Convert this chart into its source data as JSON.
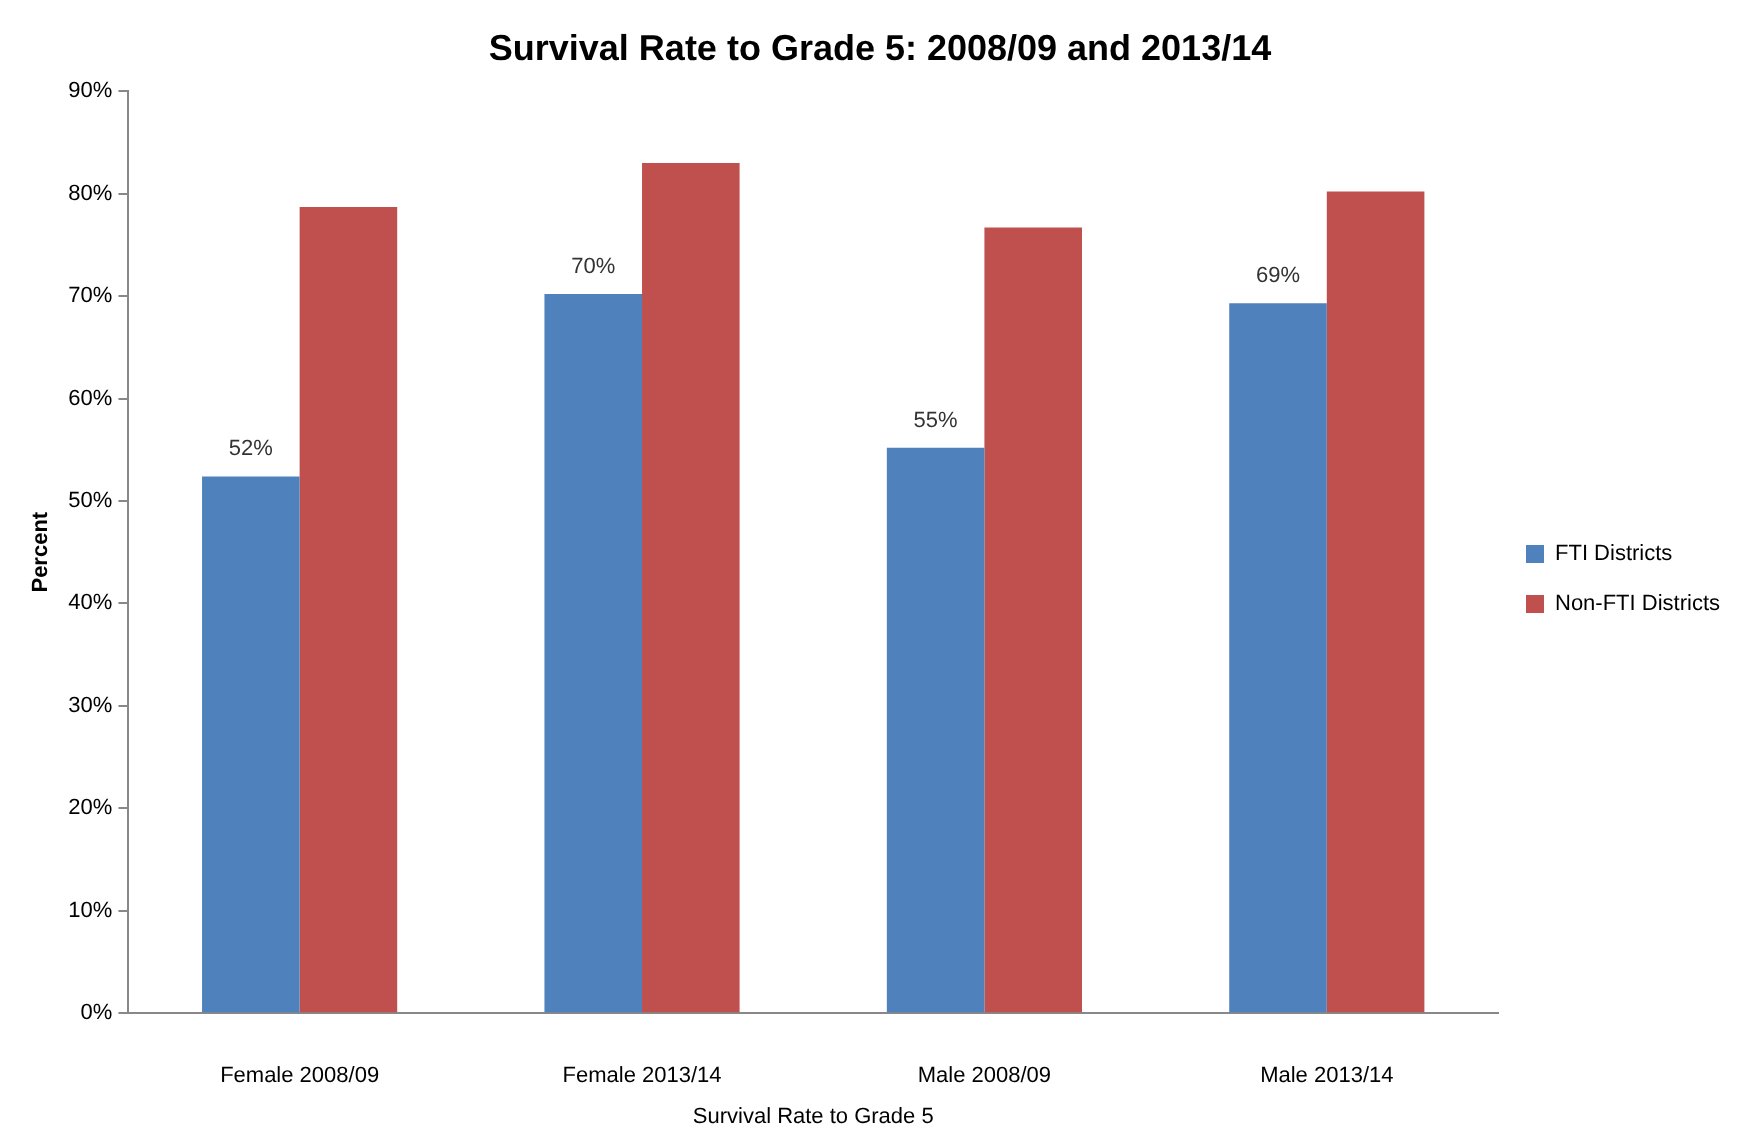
{
  "chart_data": {
    "type": "bar",
    "title": "Survival Rate to Grade 5: 2008/09 and 2013/14",
    "xlabel": "Survival Rate to Grade 5",
    "ylabel": "Percent",
    "categories": [
      "Female 2008/09",
      "Female 2013/14",
      "Male 2008/09",
      "Male 2013/14"
    ],
    "series": [
      {
        "name": "FTI Districts",
        "color": "#4f81bd",
        "values": [
          52.4,
          70.2,
          55.2,
          69.3
        ],
        "value_labels": [
          "52%",
          "70%",
          "55%",
          "69%"
        ]
      },
      {
        "name": "Non-FTI Districts",
        "color": "#c0504d",
        "values": [
          78.7,
          83.0,
          76.7,
          80.2
        ]
      }
    ],
    "ylim": [
      0,
      90
    ],
    "yticks": [
      {
        "value": 0,
        "label": "0%"
      },
      {
        "value": 10,
        "label": "10%"
      },
      {
        "value": 20,
        "label": "20%"
      },
      {
        "value": 30,
        "label": "30%"
      },
      {
        "value": 40,
        "label": "40%"
      },
      {
        "value": 50,
        "label": "50%"
      },
      {
        "value": 60,
        "label": "60%"
      },
      {
        "value": 70,
        "label": "70%"
      },
      {
        "value": 80,
        "label": "80%"
      },
      {
        "value": 90,
        "label": "90%"
      }
    ],
    "grid": false,
    "legend": "right"
  }
}
